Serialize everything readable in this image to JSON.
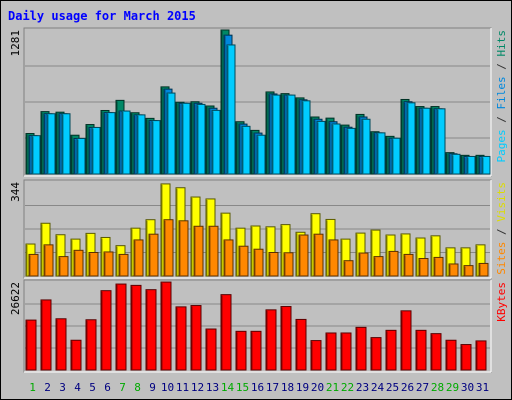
{
  "chart_data": {
    "type": "bar",
    "title": "Daily usage for March 2015",
    "categories": [
      "1",
      "2",
      "3",
      "4",
      "5",
      "6",
      "7",
      "8",
      "9",
      "10",
      "11",
      "12",
      "13",
      "14",
      "15",
      "16",
      "17",
      "18",
      "19",
      "20",
      "21",
      "22",
      "23",
      "24",
      "25",
      "26",
      "27",
      "28",
      "29",
      "30",
      "31"
    ],
    "weekend_days": [
      1,
      7,
      8,
      14,
      15,
      21,
      22,
      28,
      29
    ],
    "panels": [
      {
        "key": "top",
        "max_label": "1281",
        "ylim": [
          0,
          1281
        ],
        "side_labels": [
          {
            "text": "Pages",
            "color": "#00ccff"
          },
          {
            "text": " / ",
            "color": "#333333"
          },
          {
            "text": "Files",
            "color": "#0088dd"
          },
          {
            "text": " / ",
            "color": "#333333"
          },
          {
            "text": "Hits",
            "color": "#008866"
          }
        ],
        "series": [
          {
            "name": "Hits",
            "color": "#008866",
            "values": [
              360,
              555,
              550,
              345,
              440,
              565,
              655,
              545,
              495,
              775,
              638,
              643,
              605,
              1281,
              465,
              388,
              730,
              715,
              677,
              507,
              497,
              435,
              530,
              376,
              335,
              663,
              600,
              600,
              190,
              166,
              166
            ]
          },
          {
            "name": "Files",
            "color": "#0088dd",
            "values": [
              341,
              536,
              536,
              316,
              414,
              546,
              560,
              526,
              475,
              755,
              629,
              629,
              585,
              1235,
              444,
              364,
              712,
              702,
              660,
              487,
              465,
              416,
              507,
              366,
              318,
              643,
              585,
              580,
              180,
              156,
              156
            ]
          },
          {
            "name": "Pages",
            "color": "#00ccff",
            "values": [
              341,
              536,
              536,
              316,
              414,
              546,
              560,
              526,
              475,
              720,
              629,
              619,
              566,
              1148,
              424,
              345,
              702,
              702,
              651,
              468,
              445,
              406,
              487,
              366,
              318,
              633,
              585,
              580,
              175,
              156,
              156
            ]
          }
        ]
      },
      {
        "key": "middle",
        "max_label": "344",
        "ylim": [
          0,
          344
        ],
        "side_labels": [
          {
            "text": "Sites",
            "color": "#ff8800"
          },
          {
            "text": " / ",
            "color": "#333333"
          },
          {
            "text": "Visits",
            "color": "#dddd00"
          }
        ],
        "series": [
          {
            "name": "Visits",
            "color": "#ffff00",
            "values": [
              117,
              193,
              151,
              135,
              156,
              141,
              111,
              175,
              206,
              337,
              323,
              289,
              282,
              230,
              175,
              183,
              180,
              188,
              160,
              228,
              207,
              135,
              157,
              168,
              150,
              154,
              139,
              147,
              103,
              103,
              114
            ]
          },
          {
            "name": "Sites",
            "color": "#ff8800",
            "values": [
              79,
              114,
              71,
              94,
              86,
              88,
              79,
              132,
              153,
              206,
              202,
              182,
              182,
              132,
              109,
              98,
              86,
              85,
              150,
              153,
              132,
              56,
              84,
              71,
              90,
              79,
              64,
              68,
              44,
              38,
              46
            ]
          }
        ]
      },
      {
        "key": "bottom",
        "max_label": "26622",
        "ylim": [
          0,
          26622
        ],
        "side_labels": [
          {
            "text": "KBytes",
            "color": "#ff0000"
          }
        ],
        "series": [
          {
            "name": "KBytes",
            "color": "#ff0000",
            "values": [
              15100,
              21200,
              15500,
              9000,
              15200,
              24000,
              26000,
              25600,
              24300,
              26600,
              19100,
              19500,
              12400,
              22800,
              11700,
              11700,
              18200,
              19200,
              15300,
              8900,
              11200,
              11200,
              12900,
              9800,
              12000,
              17900,
              12000,
              11000,
              9000,
              7700,
              8800
            ]
          }
        ]
      }
    ]
  }
}
